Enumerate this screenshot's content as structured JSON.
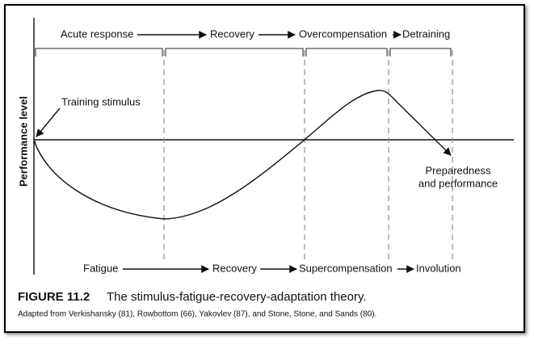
{
  "top_phases": [
    "Acute response",
    "Recovery",
    "Overcompensation",
    "Detraining"
  ],
  "bottom_phases": [
    "Fatigue",
    "Recovery",
    "Supercompensation",
    "Involution"
  ],
  "y_axis_label": "Performance level",
  "annotations": {
    "start": "Training stimulus",
    "end_line1": "Preparedness",
    "end_line2": "and performance"
  },
  "caption": {
    "figure_number": "FIGURE 11.2",
    "title": "The stimulus-fatigue-recovery-adaptation theory.",
    "source": "Adapted from Verkishansky (81), Rowbottom (66), Yakovlev (87), and Stone, Stone, and Sands (80)."
  }
}
